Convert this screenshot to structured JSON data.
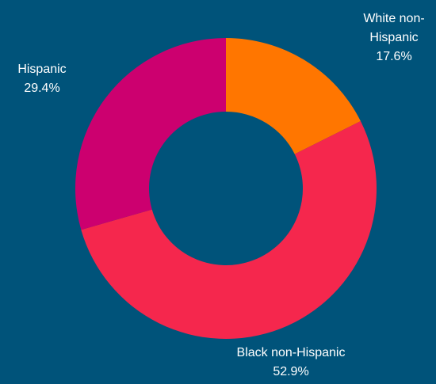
{
  "background_color": "#00537a",
  "chart_data": {
    "type": "pie",
    "variant": "donut",
    "title": "",
    "start_angle_deg": 0,
    "direction": "clockwise",
    "slices": [
      {
        "label_lines": [
          "White non-",
          "Hispanic"
        ],
        "value": 17.6,
        "value_label": "17.6%",
        "color": "#ff7600"
      },
      {
        "label_lines": [
          "Black non-Hispanic"
        ],
        "value": 52.9,
        "value_label": "52.9%",
        "color": "#f5274d"
      },
      {
        "label_lines": [
          "Hispanic"
        ],
        "value": 29.4,
        "value_label": "29.4%",
        "color": "#cc006f"
      }
    ]
  }
}
